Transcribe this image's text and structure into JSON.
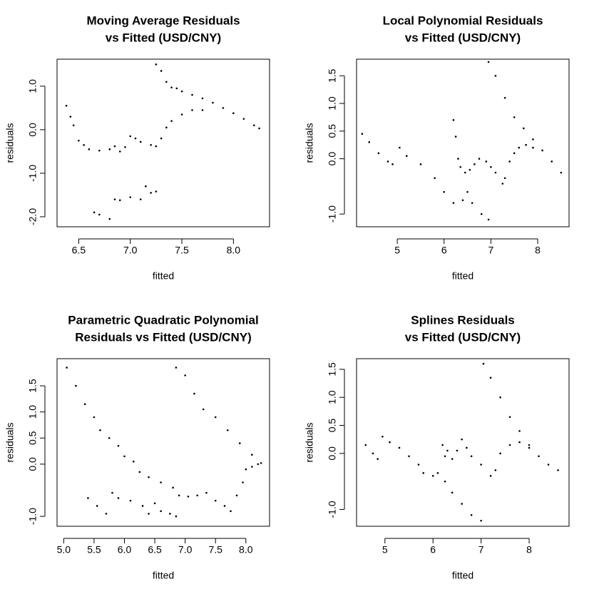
{
  "chart_data": [
    {
      "type": "scatter",
      "title": [
        "Moving Average Residuals",
        "vs Fitted (USD/CNY)"
      ],
      "x_label": "fitted",
      "y_label": "residuals",
      "color": "#000000",
      "xlim": [
        6.29,
        8.35
      ],
      "ylim": [
        -2.23,
        1.62
      ],
      "xticks": [
        6.5,
        {
          "value": 7,
          "label": "7.0"
        },
        7.5,
        {
          "value": 8,
          "label": "8.0"
        }
      ],
      "yticks": [
        {
          "value": 1,
          "label": "1.0"
        },
        {
          "value": 0,
          "label": "0.0"
        },
        {
          "value": -1,
          "label": "-1.0"
        },
        {
          "value": -2,
          "label": "-2.0"
        }
      ],
      "x": [
        7.25,
        7.3,
        7.35,
        7.4,
        7.45,
        7.5,
        7.6,
        7.7,
        7.8,
        7.9,
        8.0,
        8.1,
        8.2,
        8.25,
        6.38,
        6.42,
        6.45,
        6.5,
        6.55,
        6.6,
        6.7,
        6.8,
        6.85,
        6.9,
        6.95,
        7.0,
        7.05,
        7.1,
        7.2,
        7.25,
        7.3,
        7.35,
        7.4,
        7.5,
        7.6,
        7.7,
        6.65,
        6.7,
        6.8,
        6.85,
        6.9,
        7.0,
        7.1,
        7.15,
        7.2,
        7.25
      ],
      "y": [
        1.5,
        1.35,
        1.1,
        0.97,
        0.95,
        0.88,
        0.8,
        0.72,
        0.62,
        0.5,
        0.38,
        0.25,
        0.1,
        0.03,
        0.55,
        0.3,
        0.1,
        -0.25,
        -0.35,
        -0.45,
        -0.48,
        -0.45,
        -0.38,
        -0.5,
        -0.4,
        -0.15,
        -0.2,
        -0.28,
        -0.35,
        -0.38,
        -0.2,
        0.05,
        0.2,
        0.35,
        0.45,
        0.45,
        -1.9,
        -1.95,
        -2.05,
        -1.6,
        -1.62,
        -1.55,
        -1.6,
        -1.3,
        -1.45,
        -1.42
      ]
    },
    {
      "type": "scatter",
      "title": [
        "Local Polynomial Residuals",
        "vs Fitted (USD/CNY)"
      ],
      "x_label": "fitted",
      "y_label": "residuals",
      "color": "#000000",
      "xlim": [
        4.13,
        8.67
      ],
      "ylim": [
        -1.23,
        1.8
      ],
      "xticks": [
        5,
        6,
        7,
        8
      ],
      "yticks": [
        1.5,
        {
          "value": 1,
          "label": "1.0"
        },
        0.5,
        {
          "value": 0,
          "label": "0.0"
        },
        {
          "value": -1,
          "label": "-1.0"
        }
      ],
      "x": [
        4.25,
        4.4,
        4.6,
        4.8,
        4.9,
        5.05,
        5.2,
        5.5,
        5.8,
        6.0,
        6.2,
        6.4,
        6.5,
        6.6,
        6.8,
        6.95,
        6.95,
        7.1,
        7.3,
        7.5,
        7.7,
        7.9,
        8.1,
        8.3,
        8.5,
        6.2,
        6.25,
        6.3,
        6.35,
        6.45,
        6.55,
        6.65,
        6.75,
        6.9,
        7.0,
        7.1,
        7.25,
        7.3,
        7.4,
        7.5,
        7.6,
        7.75,
        7.9
      ],
      "y": [
        0.45,
        0.3,
        0.1,
        -0.05,
        -0.1,
        0.2,
        0.05,
        -0.1,
        -0.35,
        -0.6,
        -0.8,
        -0.75,
        -0.6,
        -0.8,
        -1.0,
        -1.1,
        1.75,
        1.5,
        1.1,
        0.75,
        0.55,
        0.35,
        0.15,
        -0.05,
        -0.25,
        0.7,
        0.4,
        0.0,
        -0.15,
        -0.25,
        -0.2,
        -0.1,
        0.0,
        -0.05,
        -0.15,
        -0.25,
        -0.45,
        -0.35,
        -0.05,
        0.1,
        0.2,
        0.25,
        0.2
      ]
    },
    {
      "type": "scatter",
      "title": [
        "Parametric Quadratic Polynomial",
        "Residuals vs Fitted (USD/CNY)"
      ],
      "x_label": "fitted",
      "y_label": "residuals",
      "color": "#000000",
      "xlim": [
        4.89,
        8.39
      ],
      "ylim": [
        -1.19,
        2.02
      ],
      "xticks": [
        {
          "value": 5,
          "label": "5.0"
        },
        5.5,
        {
          "value": 6,
          "label": "6.0"
        },
        6.5,
        {
          "value": 7,
          "label": "7.0"
        },
        7.5,
        {
          "value": 8,
          "label": "8.0"
        }
      ],
      "yticks": [
        1.5,
        {
          "value": 1,
          "label": "1.0"
        },
        0.5,
        {
          "value": 0,
          "label": "0.0"
        },
        {
          "value": -1,
          "label": "-1.0"
        }
      ],
      "x": [
        5.05,
        5.2,
        5.35,
        5.5,
        5.6,
        5.75,
        5.9,
        6.0,
        6.15,
        6.25,
        6.4,
        6.6,
        6.8,
        6.9,
        7.05,
        7.2,
        7.35,
        7.5,
        7.65,
        7.75,
        7.85,
        7.95,
        8.0,
        8.1,
        8.2,
        6.85,
        7.0,
        7.15,
        7.3,
        7.5,
        7.7,
        7.9,
        8.1,
        8.25,
        5.4,
        5.55,
        5.7,
        5.8,
        5.9,
        6.1,
        6.3,
        6.4,
        6.5,
        6.6,
        6.75,
        6.85
      ],
      "y": [
        1.85,
        1.5,
        1.15,
        0.9,
        0.65,
        0.5,
        0.35,
        0.15,
        0.05,
        -0.15,
        -0.25,
        -0.35,
        -0.45,
        -0.6,
        -0.62,
        -0.6,
        -0.55,
        -0.7,
        -0.8,
        -0.9,
        -0.6,
        -0.35,
        -0.1,
        -0.05,
        0.0,
        1.85,
        1.7,
        1.35,
        1.05,
        0.9,
        0.65,
        0.4,
        0.18,
        0.02,
        -0.65,
        -0.8,
        -0.95,
        -0.55,
        -0.65,
        -0.7,
        -0.8,
        -0.95,
        -0.75,
        -0.9,
        -0.95,
        -1.0
      ]
    },
    {
      "type": "scatter",
      "title": [
        "Splines Residuals",
        "vs Fitted (USD/CNY)"
      ],
      "x_label": "fitted",
      "y_label": "residuals",
      "color": "#000000",
      "xlim": [
        4.41,
        8.83
      ],
      "ylim": [
        -1.3,
        1.69
      ],
      "xticks": [
        5,
        6,
        7,
        8
      ],
      "yticks": [
        1.5,
        {
          "value": 1,
          "label": "1.0"
        },
        0.5,
        {
          "value": 0,
          "label": "0.0"
        },
        {
          "value": -1,
          "label": "-1.0"
        }
      ],
      "x": [
        4.6,
        4.75,
        4.85,
        4.95,
        5.1,
        5.3,
        5.5,
        5.7,
        5.8,
        6.0,
        6.1,
        6.25,
        6.4,
        6.6,
        6.8,
        7.0,
        7.05,
        7.2,
        7.4,
        7.6,
        7.8,
        8.0,
        8.2,
        8.4,
        8.6,
        6.2,
        6.25,
        6.3,
        6.4,
        6.5,
        6.6,
        6.7,
        6.8,
        7.0,
        7.2,
        7.3,
        7.4,
        7.6,
        7.8,
        8.0
      ],
      "y": [
        0.15,
        0.0,
        -0.1,
        0.3,
        0.2,
        0.1,
        -0.05,
        -0.2,
        -0.35,
        -0.4,
        -0.35,
        -0.5,
        -0.7,
        -0.9,
        -1.1,
        -1.2,
        1.6,
        1.35,
        1.0,
        0.65,
        0.4,
        0.15,
        -0.05,
        -0.2,
        -0.3,
        0.15,
        -0.05,
        0.05,
        -0.1,
        0.05,
        0.25,
        0.1,
        -0.05,
        -0.2,
        -0.4,
        -0.3,
        0.0,
        0.15,
        0.2,
        0.1
      ]
    }
  ]
}
